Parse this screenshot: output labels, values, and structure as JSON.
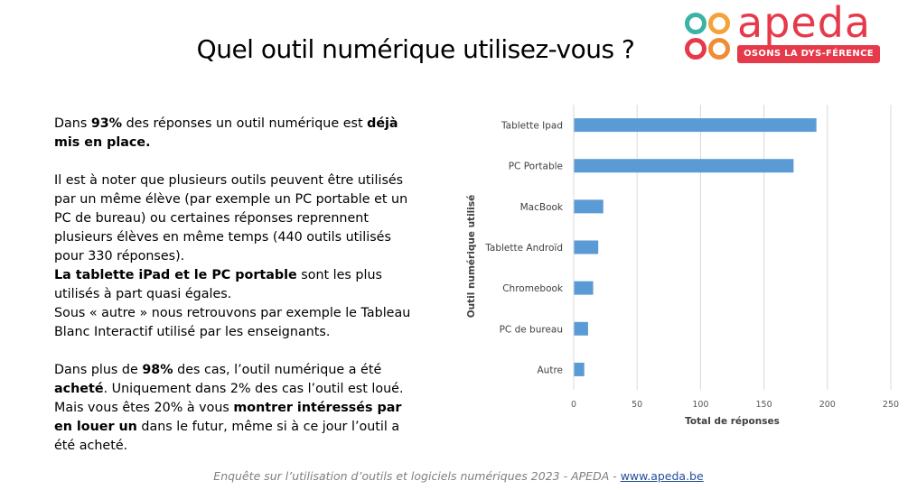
{
  "slide": {
    "title": "Quel outil numérique utilisez-vous ?"
  },
  "logo": {
    "name": "apeda",
    "tagline": "OSONS LA DYS-FÉRENCE",
    "colors": [
      "#3bb4a6",
      "#f4a33a",
      "#e6394a",
      "#f08b36"
    ]
  },
  "paragraphs": [
    {
      "runs": [
        {
          "t": "Dans ",
          "b": false
        },
        {
          "t": "93%",
          "b": true
        },
        {
          "t": " des réponses un outil numérique est ",
          "b": false
        },
        {
          "t": "déjà mis en place.",
          "b": true
        }
      ]
    },
    {
      "runs": [
        {
          "t": "Il est à noter que plusieurs outils peuvent être utilisés par un même élève (par exemple un PC portable et un PC de bureau) ou certaines réponses reprennent plusieurs élèves en même temps (440 outils utilisés pour 330 réponses).",
          "b": false
        }
      ]
    },
    {
      "nogap": true,
      "runs": [
        {
          "t": "La tablette iPad et le PC portable",
          "b": true
        },
        {
          "t": " sont les plus utilisés à part quasi égales.",
          "b": false
        }
      ]
    },
    {
      "nogap": true,
      "runs": [
        {
          "t": "Sous « autre » nous retrouvons par exemple le Tableau Blanc Interactif utilisé par les enseignants.",
          "b": false
        }
      ]
    },
    {
      "runs": [
        {
          "t": "Dans plus de ",
          "b": false
        },
        {
          "t": "98%",
          "b": true
        },
        {
          "t": " des cas, l’outil numérique a été ",
          "b": false
        },
        {
          "t": "acheté",
          "b": true
        },
        {
          "t": ". Uniquement dans 2% des cas l’outil est loué. Mais vous êtes 20% à vous ",
          "b": false
        },
        {
          "t": "montrer intéressés par en louer un",
          "b": true
        },
        {
          "t": " dans le futur, même si à ce jour l’outil a été acheté.",
          "b": false
        }
      ]
    }
  ],
  "footer": {
    "text": "Enquête sur l’utilisation d’outils et logiciels numériques 2023 - APEDA  - ",
    "link": "www.apeda.be"
  },
  "chart_data": {
    "type": "bar",
    "orientation": "horizontal",
    "categories": [
      "Tablette Ipad",
      "PC Portable",
      "MacBook",
      "Tablette Androïd",
      "Chromebook",
      "PC de bureau",
      "Autre"
    ],
    "values": [
      191,
      173,
      23,
      19,
      15,
      11,
      8
    ],
    "xlabel": "Total de réponses",
    "ylabel": "Outil numérique utilisé",
    "xlim": [
      0,
      250
    ],
    "xticks": [
      0,
      50,
      100,
      150,
      200,
      250
    ],
    "grid": true,
    "bar_color": "#5b9bd5"
  }
}
